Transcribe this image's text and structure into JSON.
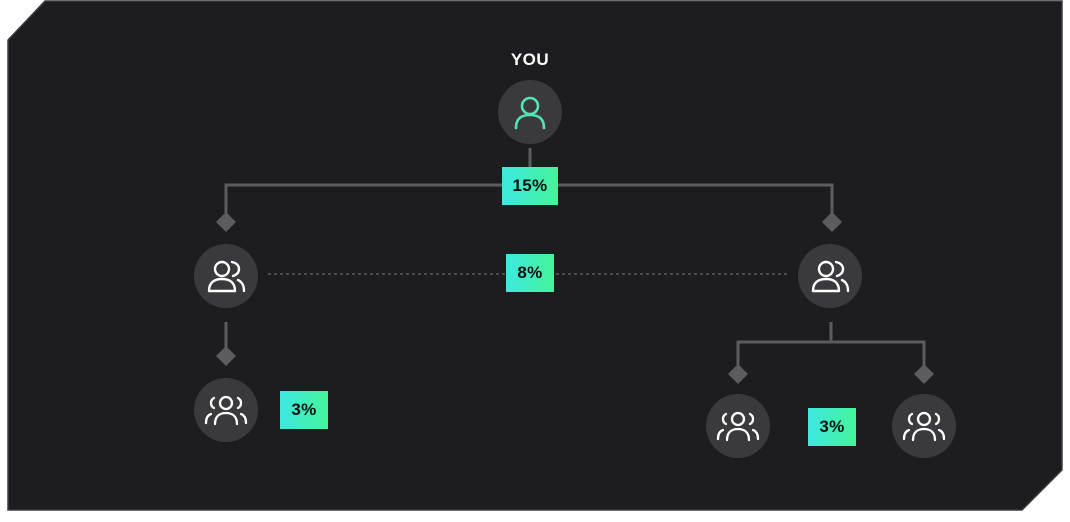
{
  "root": {
    "label": "YOU",
    "icon": "user-icon",
    "icon_color": "#53e3b5"
  },
  "rates": {
    "level1": "15%",
    "between_level1": "8%",
    "level2_left": "3%",
    "level2_right": "3%"
  },
  "nodes": {
    "left_group": {
      "icon": "users-icon"
    },
    "right_group": {
      "icon": "users-icon"
    },
    "left_sub_group": {
      "icon": "community-icon"
    },
    "right_sub_group_a": {
      "icon": "community-icon"
    },
    "right_sub_group_b": {
      "icon": "community-icon"
    }
  },
  "colors": {
    "background": "#1c1c1f",
    "node_fill": "#3a3a3c",
    "connector": "#5b5b60",
    "badge_gradient_start": "#3de8e0",
    "badge_gradient_end": "#44f59a"
  }
}
